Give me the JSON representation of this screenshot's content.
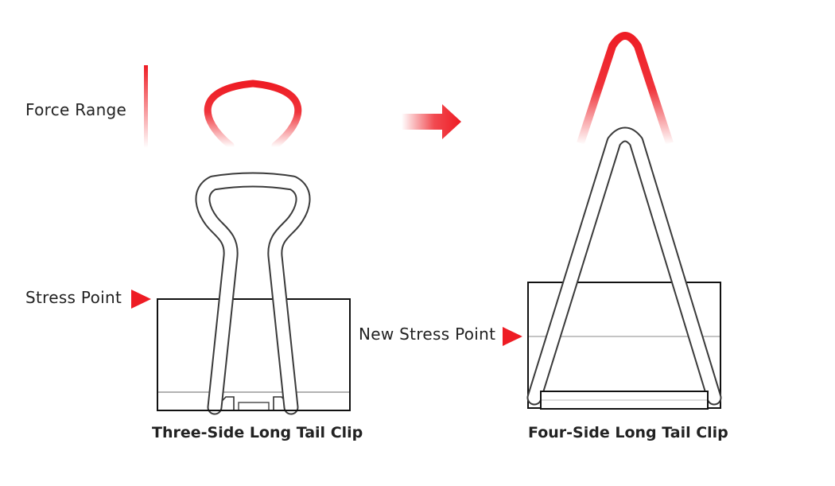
{
  "labels": {
    "force_range": "Force Range",
    "stress_point": "Stress Point",
    "new_stress_point": "New Stress Point"
  },
  "captions": {
    "left": "Three-Side Long Tail Clip",
    "right": "Four-Side Long Tail Clip"
  },
  "colors": {
    "accent": "#ee1c24",
    "line": "#111111",
    "wire": "#555555"
  }
}
